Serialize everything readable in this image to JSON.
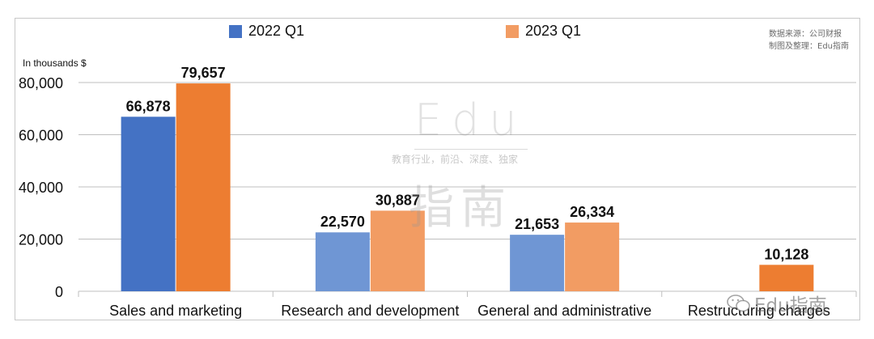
{
  "chart_data": {
    "type": "bar",
    "categories": [
      "Sales and marketing",
      "Research and development",
      "General and administrative",
      "Restructuring charges"
    ],
    "series": [
      {
        "name": "2022 Q1",
        "values": [
          66878,
          22570,
          21653,
          null
        ],
        "labels": [
          "66,878",
          "22,570",
          "21,653",
          ""
        ]
      },
      {
        "name": "2023 Q1",
        "values": [
          79657,
          30887,
          26334,
          10128
        ],
        "labels": [
          "79,657",
          "30,887",
          "26,334",
          "10,128"
        ]
      }
    ],
    "bar_colors": [
      [
        "#4472c4",
        "#6f96d4",
        "#6f96d4",
        "#6f96d4"
      ],
      [
        "#ed7d31",
        "#f29c63",
        "#f29c63",
        "#ed7d31"
      ]
    ],
    "ylabel": "In thousands $",
    "ylim": [
      0,
      80000
    ],
    "yticks": [
      0,
      20000,
      40000,
      60000,
      80000
    ],
    "ytick_labels": [
      "0",
      "20,000",
      "40,000",
      "60,000",
      "80,000"
    ],
    "grid": true,
    "legend_position": "top"
  },
  "legend": {
    "items": [
      {
        "label": "2022 Q1",
        "color": "#4472c4"
      },
      {
        "label": "2023 Q1",
        "color": "#f29c63"
      }
    ]
  },
  "source": {
    "line1": "数据来源：公司财报",
    "line2": "制图及整理：Edu指南"
  },
  "watermark": {
    "edu": "Edu",
    "slogan": "教育行业，前沿、深度、独家",
    "cn": "指南",
    "corner": "Edu指南"
  }
}
